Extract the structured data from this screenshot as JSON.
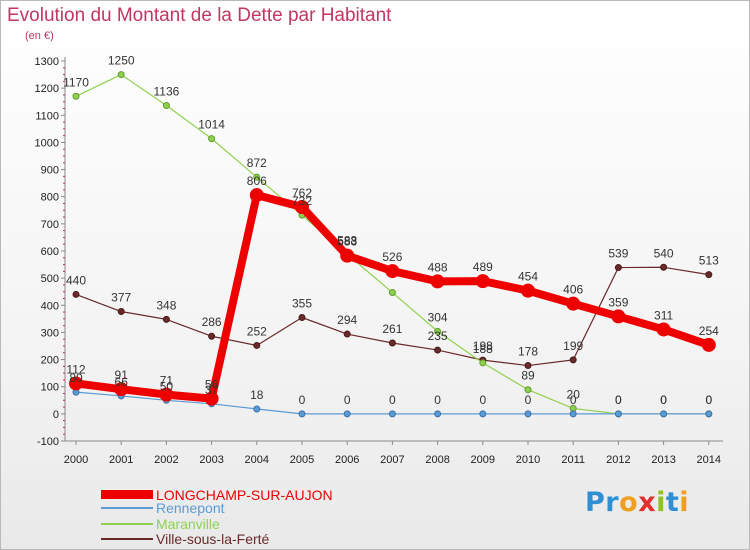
{
  "chart_data": {
    "type": "line",
    "title": "Evolution du Montant de la Dette par Habitant",
    "subtitle": "(en €)",
    "x": [
      "2000",
      "2001",
      "2002",
      "2003",
      "2004",
      "2005",
      "2006",
      "2007",
      "2008",
      "2009",
      "2010",
      "2011",
      "2012",
      "2013",
      "2014"
    ],
    "ylim": [
      -100,
      1300
    ],
    "yticks": [
      -100,
      0,
      100,
      200,
      300,
      400,
      500,
      600,
      700,
      800,
      900,
      1000,
      1100,
      1200,
      1300
    ],
    "grid": false,
    "legend_position": "bottom-left",
    "series": [
      {
        "name": "LONGCHAMP-SUR-AUJON",
        "color": "#ee0000",
        "values": [
          112,
          91,
          71,
          56,
          806,
          762,
          583,
          526,
          488,
          489,
          454,
          406,
          359,
          311,
          254
        ],
        "show_labels": [
          true,
          true,
          true,
          true,
          true,
          true,
          true,
          true,
          true,
          true,
          true,
          true,
          true,
          true,
          true
        ]
      },
      {
        "name": "Rennepont",
        "color": "#5b9bd5",
        "values": [
          80,
          66,
          50,
          37,
          18,
          0,
          0,
          0,
          0,
          0,
          0,
          0,
          0,
          0,
          0
        ],
        "show_labels": [
          true,
          true,
          true,
          true,
          true,
          true,
          true,
          true,
          true,
          true,
          true,
          true,
          true,
          true,
          true
        ]
      },
      {
        "name": "Maranville",
        "color": "#8fd14f",
        "values": [
          1170,
          1250,
          1136,
          1014,
          872,
          732,
          588,
          447,
          304,
          188,
          89,
          20,
          0,
          0,
          0
        ],
        "show_labels": [
          true,
          true,
          true,
          true,
          true,
          true,
          true,
          false,
          true,
          true,
          true,
          true,
          true,
          true,
          true
        ]
      },
      {
        "name": "Ville-sous-la-Ferté",
        "color": "#6b2a2a",
        "values": [
          440,
          377,
          348,
          286,
          252,
          355,
          294,
          261,
          235,
          198,
          178,
          199,
          539,
          540,
          513
        ],
        "show_labels": [
          true,
          true,
          true,
          true,
          true,
          true,
          true,
          true,
          true,
          true,
          true,
          true,
          true,
          true,
          true
        ]
      }
    ]
  },
  "brand": {
    "letters": [
      "P",
      "r",
      "o",
      "x",
      "i",
      "t",
      "i"
    ],
    "colors": [
      "#2f8fd3",
      "#2f8fd3",
      "#f0a020",
      "#e03030",
      "#8fc31f",
      "#2f8fd3",
      "#f0a020"
    ]
  }
}
